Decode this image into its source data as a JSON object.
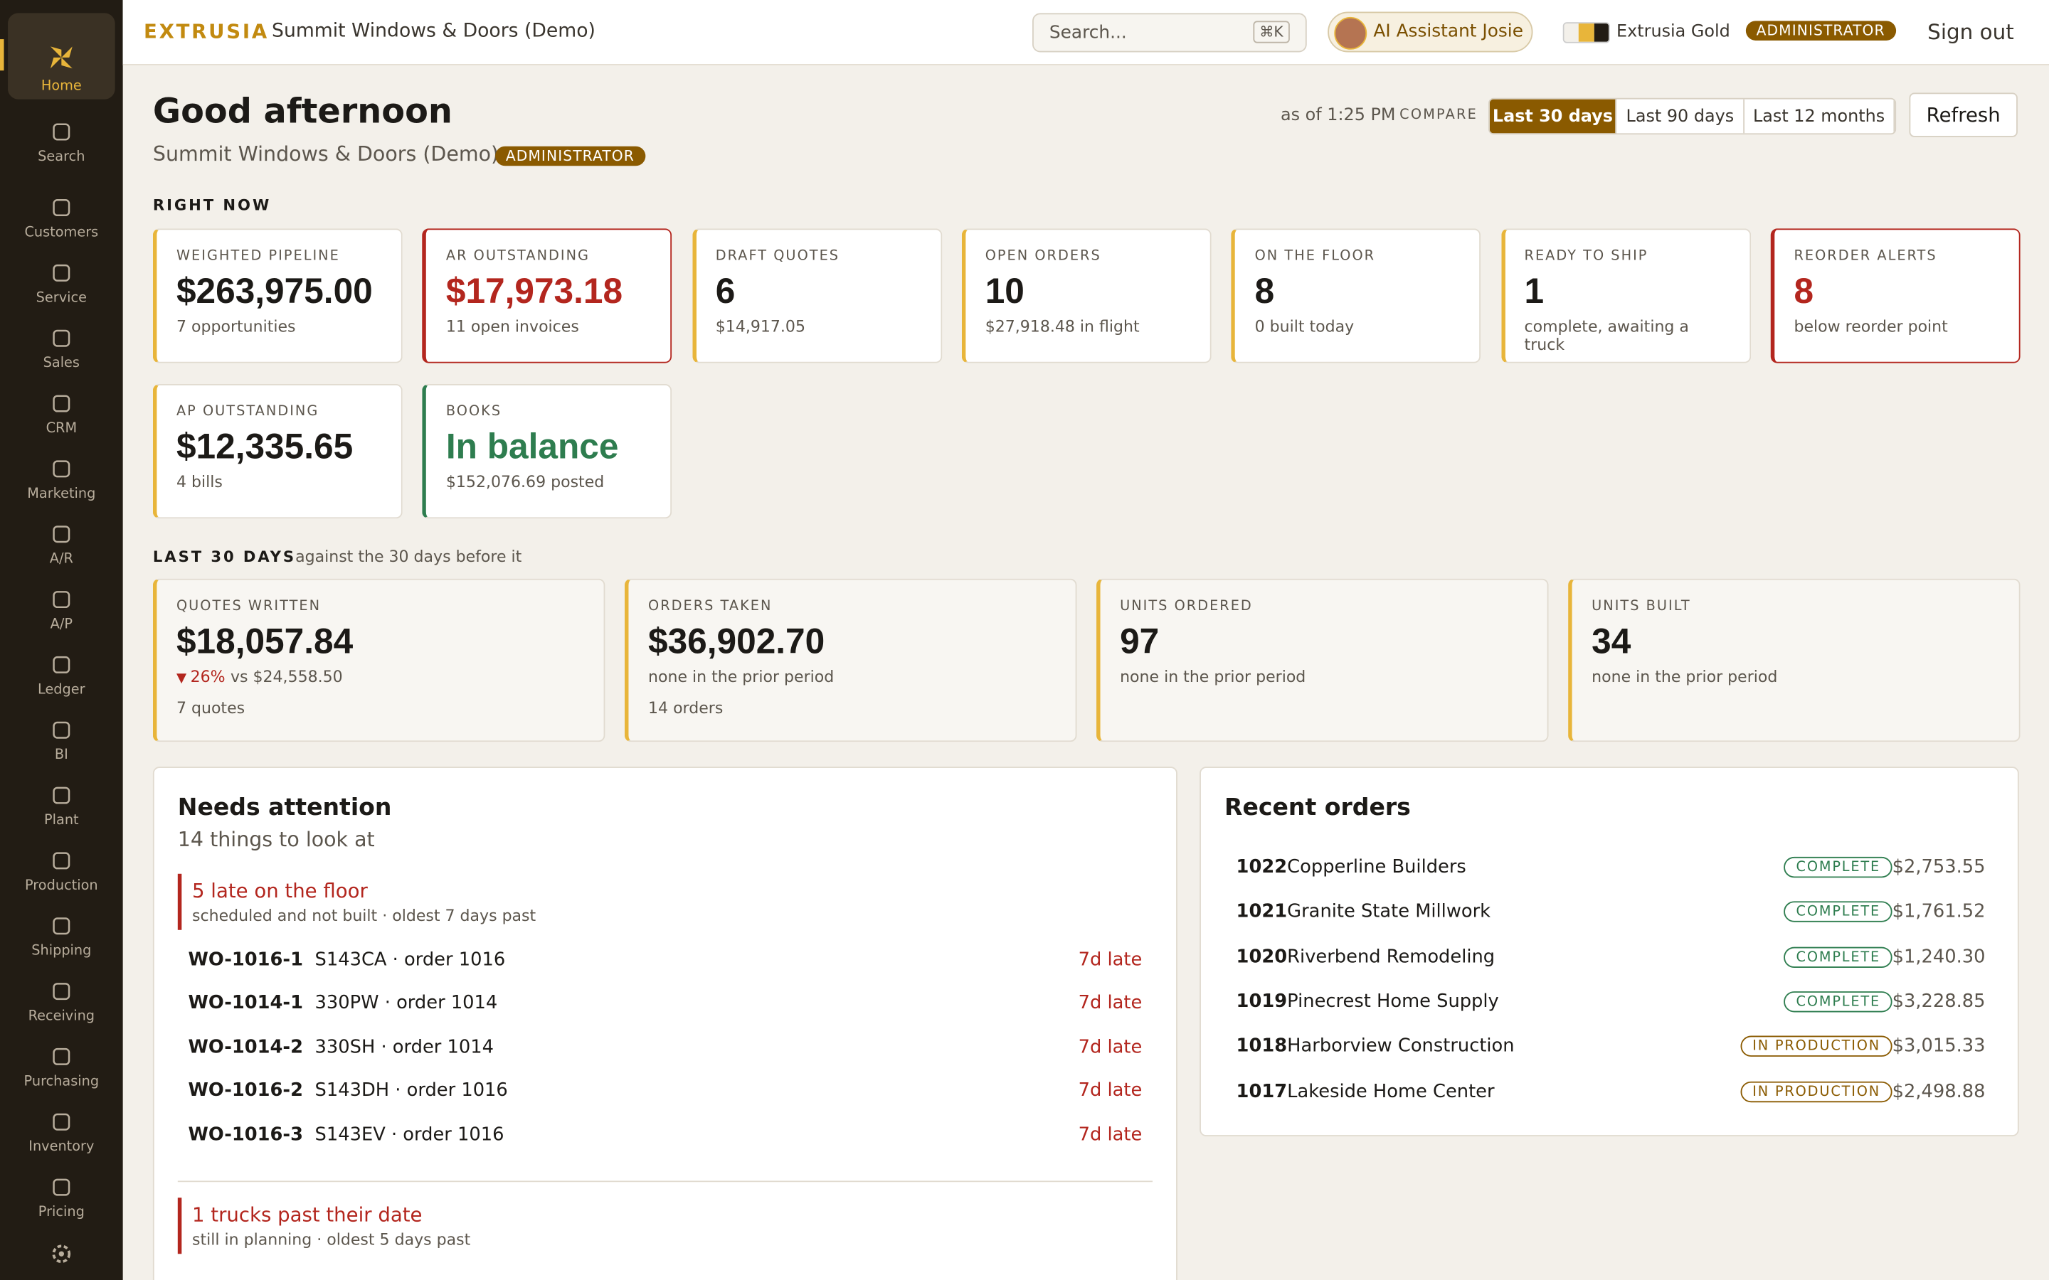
{
  "topbar": {
    "brand": "EXTRUSIA",
    "company": "Summit Windows & Doors (Demo)",
    "search": "Search...",
    "shortcut": "⌘K",
    "assistant": "AI Assistant Josie",
    "theme": "Extrusia Gold",
    "role": "ADMINISTRATOR",
    "sign_out": "Sign out"
  },
  "sidebar": [
    "Home",
    "Search",
    "Customers",
    "Service",
    "Sales",
    "CRM",
    "Marketing",
    "A/R",
    "A/P",
    "Ledger",
    "BI",
    "Plant",
    "Production",
    "Shipping",
    "Receiving",
    "Purchasing",
    "Inventory",
    "Pricing"
  ],
  "header": {
    "greeting": "Good afternoon",
    "company": "Summit Windows & Doors (Demo) ·",
    "role": "ADMINISTRATOR",
    "as_of": "as of 1:25 PM",
    "compare": "COMPARE",
    "ranges": [
      "Last 30 days",
      "Last 90 days",
      "Last 12 months"
    ],
    "refresh": "Refresh"
  },
  "right_now": {
    "title": "RIGHT NOW",
    "cards": [
      {
        "label": "WEIGHTED PIPELINE",
        "value": "$263,975.00",
        "sub": "7 opportunities",
        "tone": "gold"
      },
      {
        "label": "AR OUTSTANDING",
        "value": "$17,973.18",
        "sub": "11 open invoices",
        "tone": "red"
      },
      {
        "label": "DRAFT QUOTES",
        "value": "6",
        "sub": "$14,917.05",
        "tone": "gold"
      },
      {
        "label": "OPEN ORDERS",
        "value": "10",
        "sub": "$27,918.48 in flight",
        "tone": "gold"
      },
      {
        "label": "ON THE FLOOR",
        "value": "8",
        "sub": "0 built today",
        "tone": "gold"
      },
      {
        "label": "READY TO SHIP",
        "value": "1",
        "sub": "complete, awaiting a truck",
        "tone": "gold"
      },
      {
        "label": "REORDER ALERTS",
        "value": "8",
        "sub": "below reorder point",
        "tone": "red"
      },
      {
        "label": "AP OUTSTANDING",
        "value": "$12,335.65",
        "sub": "4 bills",
        "tone": "gold"
      },
      {
        "label": "BOOKS",
        "value": "In balance",
        "sub": "$152,076.69 posted",
        "tone": "green"
      }
    ]
  },
  "last_30": {
    "title": "LAST 30 DAYS",
    "note": "against the 30 days before it",
    "cards": [
      {
        "label": "QUOTES WRITTEN",
        "value": "$18,057.84",
        "delta": {
          "arrow": "▼",
          "pct": "26%",
          "text": "vs $24,558.50"
        },
        "lines": [
          "7 quotes"
        ]
      },
      {
        "label": "ORDERS TAKEN",
        "value": "$36,902.70",
        "lines": [
          "none in the prior period",
          "14 orders"
        ]
      },
      {
        "label": "UNITS ORDERED",
        "value": "97",
        "lines": [
          "none in the prior period"
        ]
      },
      {
        "label": "UNITS BUILT",
        "value": "34",
        "lines": [
          "none in the prior period"
        ]
      }
    ]
  },
  "attention": {
    "title": "Needs attention",
    "subtitle": "14 things to look at",
    "groups": [
      {
        "title": "5 late on the floor",
        "sub": "scheduled and not built · oldest 7 days past",
        "items": [
          {
            "id": "WO-1016-1",
            "desc": "S143CA · order 1016",
            "status": "7d late"
          },
          {
            "id": "WO-1014-1",
            "desc": "330PW · order 1014",
            "status": "7d late"
          },
          {
            "id": "WO-1014-2",
            "desc": "330SH · order 1014",
            "status": "7d late"
          },
          {
            "id": "WO-1016-2",
            "desc": "S143DH · order 1016",
            "status": "7d late"
          },
          {
            "id": "WO-1016-3",
            "desc": "S143EV · order 1016",
            "status": "7d late"
          }
        ]
      },
      {
        "title": "1 trucks past their date",
        "sub": "still in planning · oldest 5 days past",
        "items": []
      }
    ]
  },
  "recent_orders": {
    "title": "Recent orders",
    "rows": [
      {
        "number": "1022",
        "customer": "Copperline Builders",
        "status": "COMPLETE",
        "tone": "green",
        "amount": "$2,753.55"
      },
      {
        "number": "1021",
        "customer": "Granite State Millwork",
        "status": "COMPLETE",
        "tone": "green",
        "amount": "$1,761.52"
      },
      {
        "number": "1020",
        "customer": "Riverbend Remodeling",
        "status": "COMPLETE",
        "tone": "green",
        "amount": "$1,240.30"
      },
      {
        "number": "1019",
        "customer": "Pinecrest Home Supply",
        "status": "COMPLETE",
        "tone": "green",
        "amount": "$3,228.85"
      },
      {
        "number": "1018",
        "customer": "Harborview Construction",
        "status": "IN PRODUCTION",
        "tone": "gold",
        "amount": "$3,015.33"
      },
      {
        "number": "1017",
        "customer": "Lakeside Home Center",
        "status": "IN PRODUCTION",
        "tone": "gold",
        "amount": "$2,498.88"
      }
    ]
  }
}
